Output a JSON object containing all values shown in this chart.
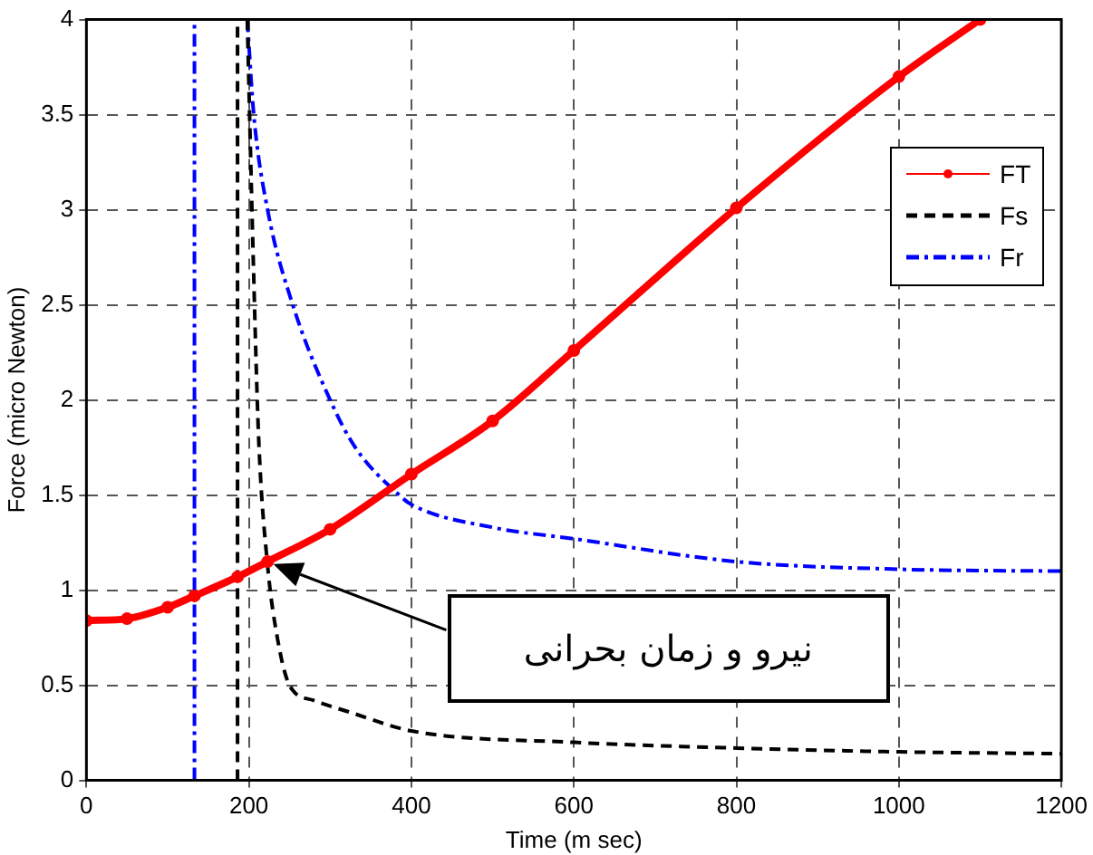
{
  "chart_data": {
    "type": "line",
    "xlabel": "Time (m sec)",
    "ylabel": "Force (micro Newton)",
    "xlim": [
      0,
      1200
    ],
    "xticks": [
      0,
      200,
      400,
      600,
      800,
      1000,
      1200
    ],
    "ylim": [
      0,
      4
    ],
    "yticks": [
      0,
      0.5,
      1,
      1.5,
      2,
      2.5,
      3,
      3.5,
      4
    ],
    "grid": true,
    "legend": "top right",
    "series": [
      {
        "name": "FT",
        "color": "#ff0000",
        "marker": "circle",
        "line_style": "solid",
        "x": [
          0,
          50,
          100,
          133,
          186,
          223,
          300,
          400,
          500,
          600,
          800,
          1000,
          1100
        ],
        "values": [
          0.84,
          0.85,
          0.91,
          0.97,
          1.07,
          1.15,
          1.32,
          1.61,
          1.89,
          2.26,
          3.01,
          3.7,
          4
        ]
      },
      {
        "name": "Fs",
        "color": "#000000",
        "marker": "none",
        "line_style": "dashed",
        "x": [
          198,
          205,
          212,
          223,
          235,
          250,
          280,
          323,
          400,
          600,
          800,
          1000,
          1200
        ],
        "values": [
          4,
          2.8,
          1.8,
          1.13,
          0.75,
          0.5,
          0.42,
          0.36,
          0.26,
          0.2,
          0.17,
          0.15,
          0.14
        ]
      },
      {
        "name": "Fr",
        "color": "#0000ff",
        "marker": "none",
        "line_style": "dashdot",
        "x": [
          198,
          206,
          223,
          254,
          300,
          331,
          385,
          400,
          500,
          600,
          800,
          1000,
          1200
        ],
        "values": [
          4,
          3.5,
          3,
          2.5,
          2,
          1.75,
          1.5,
          1.45,
          1.33,
          1.27,
          1.15,
          1.11,
          1.1
        ]
      }
    ],
    "ref_lines": [
      {
        "axis": "x",
        "value": 133,
        "color": "#0000ff",
        "line_style": "dashdot"
      },
      {
        "axis": "x",
        "value": 186,
        "color": "#000000",
        "line_style": "dashed"
      }
    ],
    "annotations": [
      "نیرو و زمان بحرانی"
    ]
  }
}
